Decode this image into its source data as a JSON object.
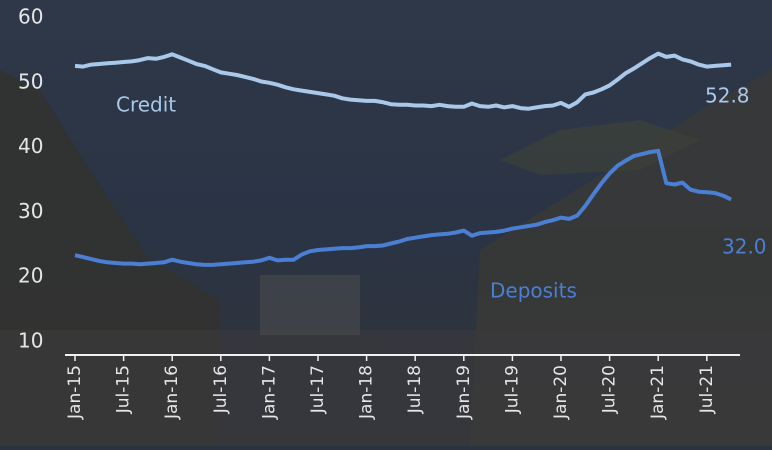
{
  "chart_data": {
    "type": "line",
    "categories": [
      "Jan-15",
      null,
      null,
      null,
      null,
      null,
      "Jul-15",
      null,
      null,
      null,
      null,
      null,
      "Jan-16",
      null,
      null,
      null,
      null,
      null,
      "Jul-16",
      null,
      null,
      null,
      null,
      null,
      "Jan-17",
      null,
      null,
      null,
      null,
      null,
      "Jul-17",
      null,
      null,
      null,
      null,
      null,
      "Jan-18",
      null,
      null,
      null,
      null,
      null,
      "Jul-18",
      null,
      null,
      null,
      null,
      null,
      "Jan-19",
      null,
      null,
      null,
      null,
      null,
      "Jul-19",
      null,
      null,
      null,
      null,
      null,
      "Jan-20",
      null,
      null,
      null,
      null,
      null,
      "Jul-20",
      null,
      null,
      null,
      null,
      null,
      "Jan-21",
      null,
      null,
      null,
      null,
      null,
      "Jul-21",
      null,
      null,
      null
    ],
    "series": [
      {
        "name": "Credit",
        "color": "#a9c8ea",
        "values": [
          52.6,
          52.5,
          52.8,
          52.9,
          53.0,
          53.1,
          53.2,
          53.3,
          53.5,
          53.8,
          53.7,
          54.0,
          54.4,
          53.9,
          53.4,
          52.9,
          52.6,
          52.1,
          51.6,
          51.4,
          51.2,
          50.9,
          50.6,
          50.2,
          50.0,
          49.7,
          49.3,
          49.0,
          48.8,
          48.6,
          48.4,
          48.2,
          48.0,
          47.6,
          47.4,
          47.3,
          47.2,
          47.2,
          47.0,
          46.7,
          46.6,
          46.6,
          46.5,
          46.5,
          46.4,
          46.6,
          46.4,
          46.3,
          46.3,
          46.8,
          46.4,
          46.3,
          46.5,
          46.2,
          46.4,
          46.1,
          46.0,
          46.2,
          46.4,
          46.5,
          46.9,
          46.3,
          47.0,
          48.2,
          48.5,
          49.0,
          49.6,
          50.5,
          51.5,
          52.2,
          53.0,
          53.8,
          54.5,
          54.0,
          54.2,
          53.6,
          53.3,
          52.8,
          52.5,
          52.6,
          52.7,
          52.8
        ]
      },
      {
        "name": "Deposits",
        "color": "#4a7fd4",
        "values": [
          23.4,
          23.1,
          22.8,
          22.5,
          22.3,
          22.2,
          22.1,
          22.1,
          22.0,
          22.1,
          22.2,
          22.3,
          22.7,
          22.4,
          22.2,
          22.0,
          21.9,
          21.9,
          22.0,
          22.1,
          22.2,
          22.3,
          22.4,
          22.6,
          23.0,
          22.6,
          22.7,
          22.7,
          23.5,
          24.0,
          24.2,
          24.3,
          24.4,
          24.5,
          24.5,
          24.6,
          24.8,
          24.8,
          24.9,
          25.2,
          25.5,
          25.9,
          26.1,
          26.3,
          26.5,
          26.6,
          26.7,
          26.9,
          27.2,
          26.4,
          26.8,
          26.9,
          27.0,
          27.2,
          27.5,
          27.7,
          27.9,
          28.1,
          28.5,
          28.8,
          29.2,
          29.0,
          29.5,
          31.0,
          32.8,
          34.5,
          36.0,
          37.2,
          38.0,
          38.7,
          39.0,
          39.3,
          39.5,
          34.5,
          34.3,
          34.6,
          33.5,
          33.2,
          33.1,
          33.0,
          32.6,
          32.0
        ],
        "value_labels": [
          null,
          null,
          null,
          null,
          null,
          null,
          null,
          null,
          null,
          null,
          null,
          null,
          null,
          null,
          null,
          null,
          null,
          null,
          null,
          null,
          null,
          null,
          null,
          null,
          null,
          null,
          null,
          null,
          null,
          null,
          null,
          null,
          null,
          null,
          null,
          null,
          null,
          null,
          null,
          null,
          null,
          null,
          null,
          null,
          null,
          null,
          null,
          null,
          null,
          null,
          null,
          null,
          null,
          null,
          null,
          null,
          null,
          null,
          null,
          null,
          null,
          null,
          null,
          null,
          null,
          null,
          null,
          null,
          null,
          null,
          null,
          null,
          null,
          null,
          null,
          null,
          null,
          null,
          null,
          null,
          null,
          "32.0"
        ]
      }
    ],
    "ylim": [
      8,
      62
    ],
    "yticks": [
      10,
      20,
      30,
      40,
      50,
      60
    ],
    "grid": false
  }
}
